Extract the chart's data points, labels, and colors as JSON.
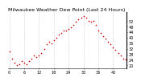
{
  "title": "Milwaukee Weather Dew Point (Last 24 Hours)",
  "y_values": [
    30,
    25,
    22,
    20,
    21,
    23,
    22,
    21,
    23,
    25,
    27,
    26,
    27,
    29,
    32,
    35,
    37,
    36,
    38,
    40,
    42,
    43,
    45,
    45,
    46,
    47,
    49,
    51,
    53,
    54,
    55,
    54,
    52,
    51,
    52,
    49,
    45,
    43,
    41,
    39,
    37,
    35,
    33,
    31,
    29,
    27,
    25,
    24
  ],
  "dot_color": "#cc0000",
  "bg_color": "#ffffff",
  "grid_color": "#bbbbbb",
  "title_color": "#000000",
  "title_fontsize": 4.5,
  "tick_fontsize": 3.5,
  "ylim": [
    18,
    58
  ],
  "yticks": [
    20,
    24,
    28,
    32,
    36,
    40,
    44,
    48,
    52
  ],
  "marker_size": 1.2,
  "vgrid_step": 6,
  "xtick_step": 6
}
